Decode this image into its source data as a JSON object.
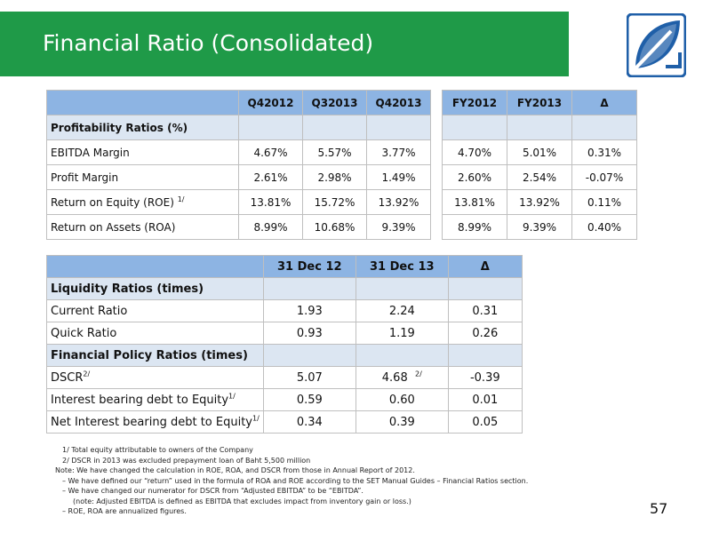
{
  "title": "Financial Ratio (Consolidated)",
  "page_number": "57",
  "colors": {
    "title_bar": "#1f9a48",
    "header": "#8db4e3",
    "section": "#dce6f2",
    "logo_blue": "#1f5fa8"
  },
  "table1": {
    "headers": [
      "",
      "Q42012",
      "Q32013",
      "Q42013"
    ],
    "section": "Profitability Ratios (%)",
    "rows": [
      {
        "label": "EBITDA Margin",
        "sup": "",
        "values": [
          "4.67%",
          "5.57%",
          "3.77%"
        ]
      },
      {
        "label": "Profit Margin",
        "sup": "",
        "values": [
          "2.61%",
          "2.98%",
          "1.49%"
        ]
      },
      {
        "label": "Return on Equity (ROE)",
        "sup": "1/",
        "values": [
          "13.81%",
          "15.72%",
          "13.92%"
        ]
      },
      {
        "label": "Return on Assets (ROA)",
        "sup": "",
        "values": [
          "8.99%",
          "10.68%",
          "9.39%"
        ]
      }
    ]
  },
  "table2": {
    "headers": [
      "FY2012",
      "FY2013",
      "Δ"
    ],
    "rows": [
      [
        "4.70%",
        "5.01%",
        "0.31%"
      ],
      [
        "2.60%",
        "2.54%",
        "-0.07%"
      ],
      [
        "13.81%",
        "13.92%",
        "0.11%"
      ],
      [
        "8.99%",
        "9.39%",
        "0.40%"
      ]
    ]
  },
  "table3": {
    "headers": [
      "",
      "31 Dec 12",
      "31 Dec 13",
      "Δ"
    ],
    "section1": "Liquidity Ratios (times)",
    "rows1": [
      {
        "label": "Current Ratio",
        "sup": "",
        "values": [
          "1.93",
          "2.24",
          "0.31"
        ],
        "vsup": ""
      },
      {
        "label": "Quick Ratio",
        "sup": "",
        "values": [
          "0.93",
          "1.19",
          "0.26"
        ],
        "vsup": ""
      }
    ],
    "section2": "Financial Policy Ratios (times)",
    "rows2": [
      {
        "label": "DSCR",
        "sup": "2/",
        "values": [
          "5.07",
          "4.68",
          "-0.39"
        ],
        "vsup": "2/"
      },
      {
        "label": "Interest bearing debt to Equity",
        "sup": "1/",
        "values": [
          "0.59",
          "0.60",
          "0.01"
        ],
        "vsup": ""
      },
      {
        "label": "Net Interest bearing debt to Equity",
        "sup": "1/",
        "values": [
          "0.34",
          "0.39",
          "0.05"
        ],
        "vsup": ""
      }
    ]
  },
  "notes": {
    "n1": "1/ Total equity attributable to owners of the Company",
    "n2": "2/ DSCR in 2013 was excluded prepayment loan of Baht 5,500 million",
    "n3": "Note:  We have changed the calculation in ROE, ROA, and DSCR from those in Annual Report of 2012.",
    "n4": "–  We have defined our “return” used in the formula of ROA and ROE according to the SET Manual Guides  – Financial Ratios section.",
    "n5": "–  We have changed our numerator for DSCR from “Adjusted EBITDA” to be “EBITDA”.",
    "n6": "(note: Adjusted EBITDA is defined as EBITDA that excludes impact from inventory gain or loss.)",
    "n7": "–  ROE, ROA are annualized figures."
  }
}
